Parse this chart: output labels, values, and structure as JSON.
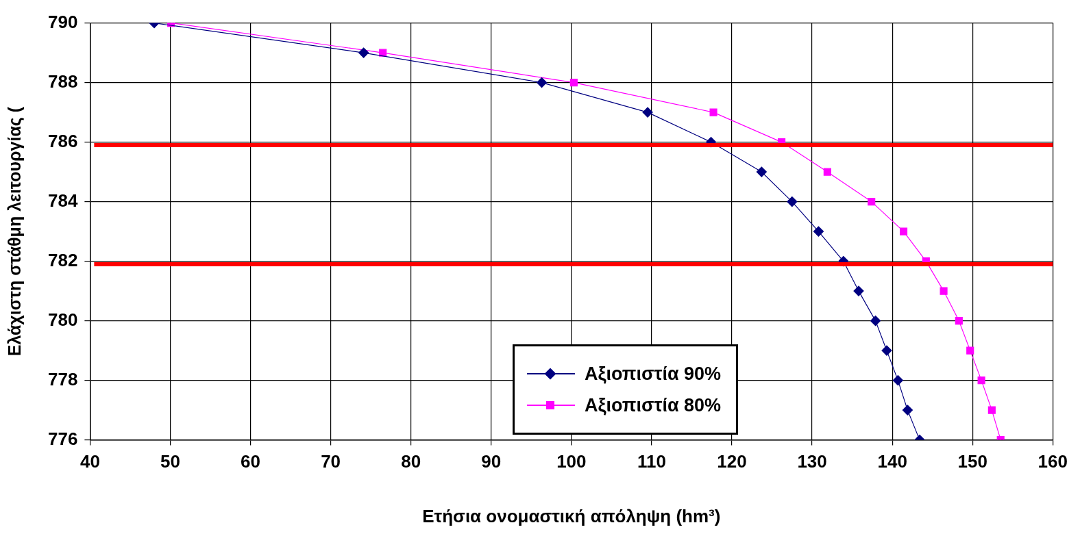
{
  "chart_data": {
    "type": "line",
    "xlabel": "Ετήσια ονομαστική απόληψη (hm³)",
    "ylabel": "Ελάχιστη στάθμη λειτουργίας (",
    "xlim": [
      40,
      160
    ],
    "xticks": [
      40,
      50,
      60,
      70,
      80,
      90,
      100,
      110,
      120,
      130,
      140,
      150,
      160
    ],
    "ylim": [
      776,
      790
    ],
    "yticks": [
      776,
      778,
      780,
      782,
      784,
      786,
      788,
      790
    ],
    "grid": true,
    "legend": "bottom right",
    "line_style": "solid",
    "series": [
      {
        "name": "Αξιοπιστία 90%",
        "color": "#000080",
        "marker": "diamond",
        "x": [
          48.0,
          74.1,
          96.3,
          109.5,
          117.4,
          123.7,
          127.5,
          130.8,
          133.9,
          135.8,
          137.9,
          139.3,
          140.7,
          141.9,
          143.4
        ],
        "values": [
          790,
          789,
          788,
          787,
          786,
          785,
          784,
          783,
          782,
          781,
          780,
          779,
          778,
          777,
          776
        ]
      },
      {
        "name": "Αξιοπιστία 80%",
        "color": "#ff00ff",
        "marker": "square",
        "x": [
          50.1,
          76.5,
          100.3,
          117.7,
          126.2,
          131.9,
          137.4,
          141.4,
          144.2,
          146.4,
          148.3,
          149.7,
          151.1,
          152.4,
          153.5
        ],
        "values": [
          790,
          789,
          788,
          787,
          786,
          785,
          784,
          783,
          782,
          781,
          780,
          779,
          778,
          777,
          776
        ]
      }
    ],
    "ref_lines": [
      {
        "axis": "y",
        "value": 785.9,
        "color": "#ff0000"
      },
      {
        "axis": "y",
        "value": 781.9,
        "color": "#ff0000"
      }
    ]
  }
}
